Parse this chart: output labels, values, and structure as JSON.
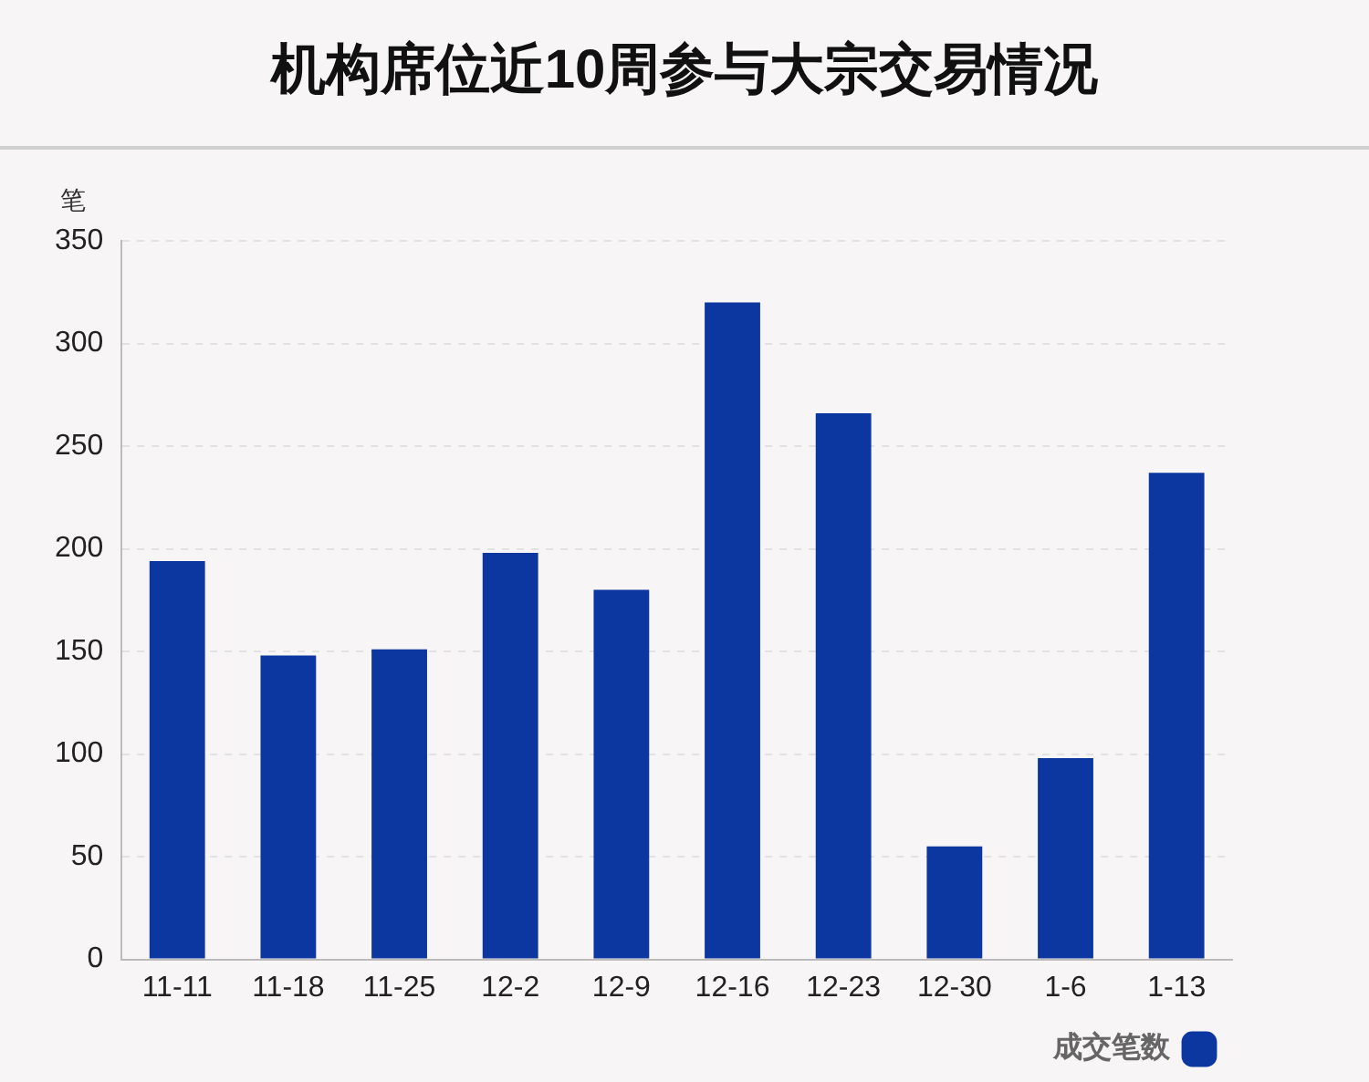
{
  "chart_data": {
    "type": "bar",
    "title": "机构席位近10周参与大宗交易情况",
    "ylabel": "笔",
    "categories": [
      "11-11",
      "11-18",
      "11-25",
      "12-2",
      "12-9",
      "12-16",
      "12-23",
      "12-30",
      "1-6",
      "1-13"
    ],
    "series": [
      {
        "name": "成交笔数",
        "color": "#0d37a0",
        "values": [
          194,
          148,
          151,
          198,
          180,
          320,
          266,
          55,
          98,
          237
        ]
      }
    ],
    "ylim": [
      0,
      350
    ],
    "yticks": [
      0,
      50,
      100,
      150,
      200,
      250,
      300,
      350
    ],
    "grid": "y",
    "legend": "bottom right"
  }
}
